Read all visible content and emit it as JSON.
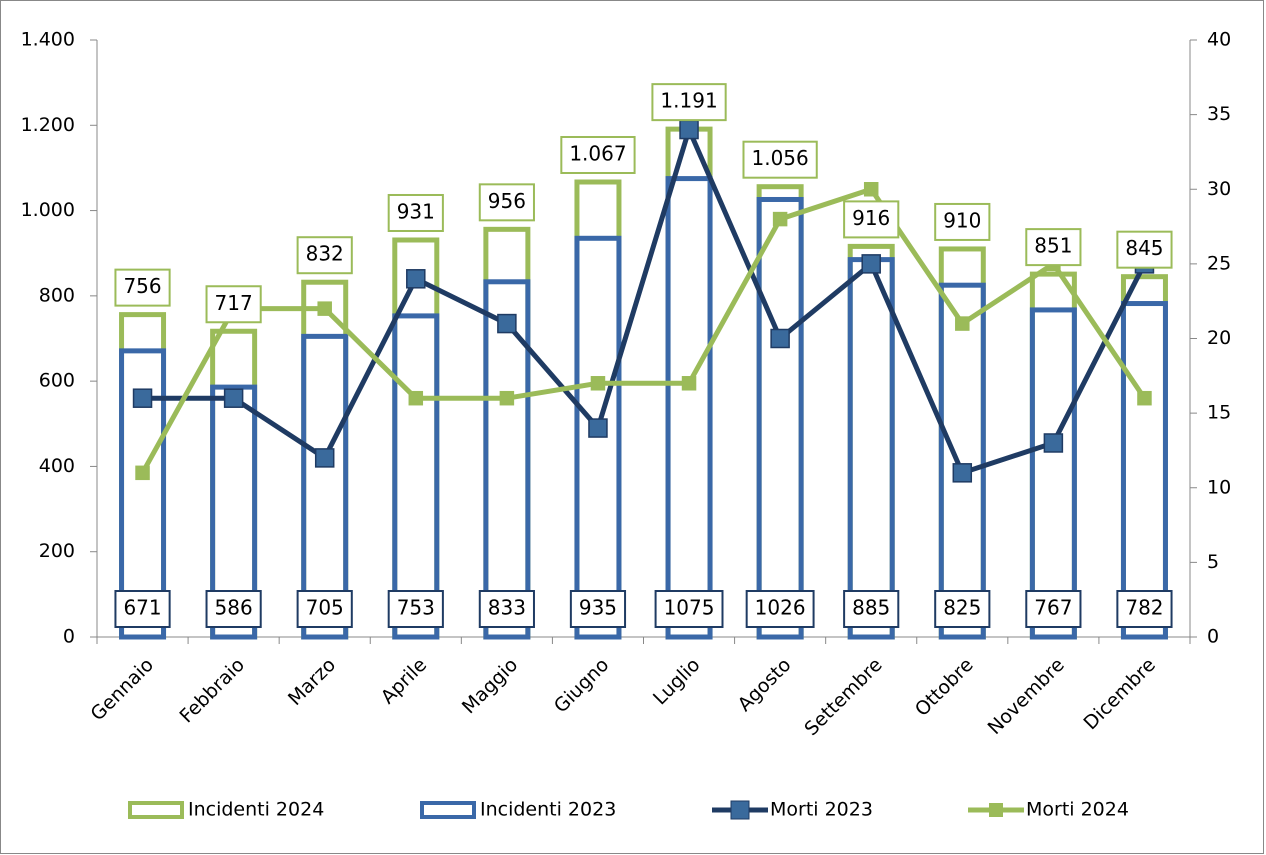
{
  "chart_data": {
    "type": "bar",
    "categories": [
      "Gennaio",
      "Febbraio",
      "Marzo",
      "Aprile",
      "Maggio",
      "Giugno",
      "Luglio",
      "Agosto",
      "Settembre",
      "Ottobre",
      "Novembre",
      "Dicembre"
    ],
    "series": [
      {
        "name": "Incidenti 2024",
        "type": "bar",
        "color": "#9bbb59",
        "values": [
          756,
          717,
          832,
          931,
          956,
          1067,
          1191,
          1056,
          916,
          910,
          851,
          845
        ],
        "value_labels": [
          "756",
          "717",
          "832",
          "931",
          "956",
          "1.067",
          "1.191",
          "1.056",
          "916",
          "910",
          "851",
          "845"
        ]
      },
      {
        "name": "Incidenti 2023",
        "type": "bar",
        "color": "#3a68a8",
        "values": [
          671,
          586,
          705,
          753,
          833,
          935,
          1075,
          1026,
          885,
          825,
          767,
          782
        ]
      },
      {
        "name": "Morti 2023",
        "type": "line",
        "axis": "y2",
        "color": "#1f3b63",
        "marker_color": "#3a6a9c",
        "values": [
          16,
          16,
          12,
          24,
          21,
          14,
          34,
          20,
          25,
          11,
          13,
          25
        ]
      },
      {
        "name": "Morti 2024",
        "type": "line",
        "axis": "y2",
        "color": "#9bbb59",
        "marker_color": "#9bbb59",
        "values": [
          11,
          22,
          22,
          16,
          16,
          17,
          17,
          28,
          30,
          21,
          25,
          16
        ]
      }
    ],
    "ylim": [
      0,
      1400
    ],
    "yticks": [
      0,
      200,
      400,
      600,
      800,
      {
        "value": 1000,
        "label": "1.000"
      },
      {
        "value": 1200,
        "label": "1.200"
      },
      {
        "value": 1400,
        "label": "1.400"
      }
    ],
    "y2lim": [
      0,
      40
    ],
    "y2ticks": [
      0,
      5,
      10,
      15,
      20,
      25,
      30,
      35,
      40
    ]
  }
}
